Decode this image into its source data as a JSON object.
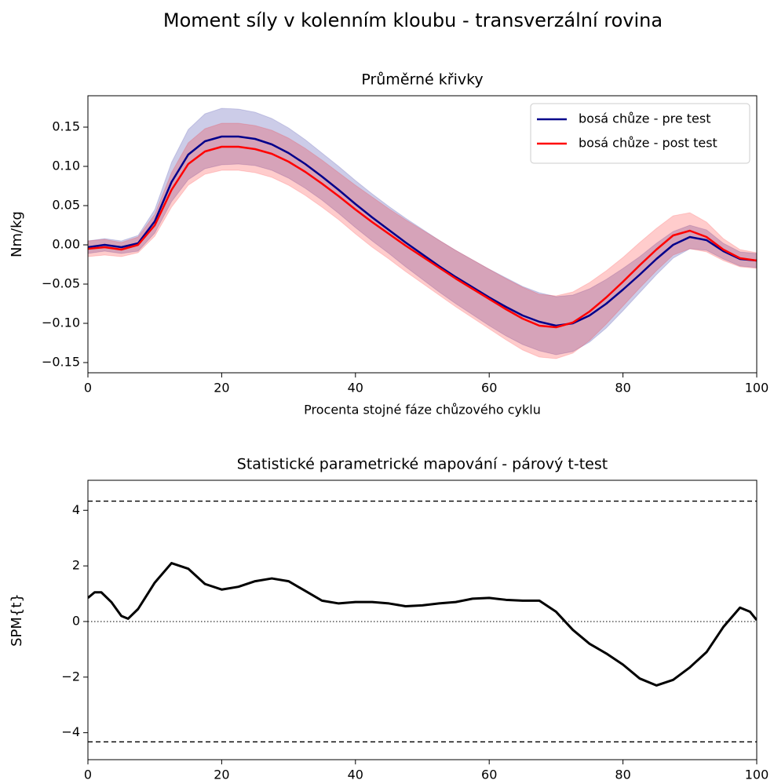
{
  "title": "Moment síly v kolenním kloubu - transverzální rovina",
  "chart_data": [
    {
      "type": "line",
      "title": "Průměrné křivky",
      "xlabel": "Procenta stojné fáze chůzového cyklu",
      "ylabel": "Nm/kg",
      "x": [
        0,
        2.5,
        5,
        7.5,
        10,
        12.5,
        15,
        17.5,
        20,
        22.5,
        25,
        27.5,
        30,
        32.5,
        35,
        37.5,
        40,
        42.5,
        45,
        47.5,
        50,
        52.5,
        55,
        57.5,
        60,
        62.5,
        65,
        67.5,
        70,
        72.5,
        75,
        77.5,
        80,
        82.5,
        85,
        87.5,
        90,
        92.5,
        95,
        97.5,
        100
      ],
      "series": [
        {
          "name": "bosá chůze - pre test",
          "color": "#00008b",
          "values": [
            -0.003,
            0.0,
            -0.003,
            0.002,
            0.03,
            0.08,
            0.115,
            0.132,
            0.138,
            0.138,
            0.135,
            0.128,
            0.117,
            0.103,
            0.087,
            0.07,
            0.052,
            0.035,
            0.019,
            0.003,
            -0.012,
            -0.027,
            -0.041,
            -0.054,
            -0.067,
            -0.079,
            -0.09,
            -0.098,
            -0.103,
            -0.1,
            -0.09,
            -0.075,
            -0.057,
            -0.038,
            -0.018,
            0.0,
            0.01,
            0.006,
            -0.008,
            -0.018,
            -0.02
          ],
          "errors": [
            0.008,
            0.008,
            0.008,
            0.01,
            0.015,
            0.025,
            0.032,
            0.035,
            0.036,
            0.035,
            0.034,
            0.033,
            0.032,
            0.031,
            0.03,
            0.03,
            0.03,
            0.03,
            0.03,
            0.031,
            0.032,
            0.033,
            0.034,
            0.035,
            0.036,
            0.037,
            0.037,
            0.037,
            0.037,
            0.036,
            0.034,
            0.031,
            0.027,
            0.023,
            0.02,
            0.017,
            0.015,
            0.013,
            0.01,
            0.009,
            0.009
          ]
        },
        {
          "name": "bosá chůze - post test",
          "color": "#ff0000",
          "values": [
            -0.005,
            -0.003,
            -0.006,
            0.0,
            0.025,
            0.07,
            0.103,
            0.119,
            0.125,
            0.125,
            0.122,
            0.116,
            0.106,
            0.093,
            0.078,
            0.062,
            0.045,
            0.029,
            0.014,
            -0.001,
            -0.015,
            -0.029,
            -0.043,
            -0.056,
            -0.069,
            -0.082,
            -0.094,
            -0.103,
            -0.105,
            -0.099,
            -0.085,
            -0.067,
            -0.047,
            -0.026,
            -0.006,
            0.012,
            0.018,
            0.01,
            -0.006,
            -0.017,
            -0.02
          ],
          "errors": [
            0.01,
            0.01,
            0.009,
            0.01,
            0.014,
            0.022,
            0.027,
            0.029,
            0.03,
            0.03,
            0.03,
            0.03,
            0.03,
            0.03,
            0.03,
            0.03,
            0.031,
            0.032,
            0.032,
            0.033,
            0.034,
            0.035,
            0.036,
            0.037,
            0.038,
            0.039,
            0.04,
            0.04,
            0.04,
            0.039,
            0.037,
            0.034,
            0.031,
            0.029,
            0.027,
            0.025,
            0.023,
            0.019,
            0.014,
            0.011,
            0.01
          ]
        }
      ],
      "xlim": [
        0,
        100
      ],
      "xticks": [
        0,
        20,
        40,
        60,
        80,
        100
      ],
      "ylim": [
        -0.163,
        0.19
      ],
      "yticks": [
        {
          "value": -0.15,
          "label": "−0.15"
        },
        {
          "value": -0.1,
          "label": "−0.10"
        },
        {
          "value": -0.05,
          "label": "−0.05"
        },
        {
          "value": 0,
          "label": "0.00"
        },
        0.05,
        {
          "value": 0.1,
          "label": "0.10"
        },
        0.15
      ],
      "legend": "upper right"
    },
    {
      "type": "line",
      "title": "Statistické parametrické mapování - párový t-test",
      "ylabel": "SPM{t}",
      "x": [
        0,
        1,
        2,
        3.5,
        5,
        6,
        7.5,
        10,
        12.5,
        15,
        17.5,
        20,
        22.5,
        25,
        27.5,
        30,
        32.5,
        35,
        37.5,
        40,
        42.5,
        45,
        47.5,
        50,
        52.5,
        55,
        57.5,
        60,
        62.5,
        65,
        67.5,
        70,
        72.5,
        75,
        77.5,
        80,
        82.5,
        85,
        87.5,
        90,
        92.5,
        95,
        97.5,
        99,
        100
      ],
      "series": [
        {
          "color": "#000000",
          "values": [
            0.85,
            1.05,
            1.05,
            0.7,
            0.2,
            0.1,
            0.45,
            1.4,
            2.1,
            1.9,
            1.35,
            1.15,
            1.25,
            1.45,
            1.55,
            1.45,
            1.1,
            0.75,
            0.65,
            0.7,
            0.7,
            0.65,
            0.55,
            0.58,
            0.65,
            0.7,
            0.82,
            0.85,
            0.78,
            0.75,
            0.75,
            0.35,
            -0.3,
            -0.8,
            -1.15,
            -1.55,
            -2.05,
            -2.3,
            -2.1,
            -1.65,
            -1.1,
            -0.2,
            0.5,
            0.35,
            0.05
          ]
        }
      ],
      "hlines": [
        {
          "value": 4.33,
          "style": "dashed"
        },
        {
          "value": -4.33,
          "style": "dashed"
        },
        {
          "value": 0,
          "style": "dotted"
        }
      ],
      "xlim": [
        0,
        100
      ],
      "xticks": [
        0,
        20,
        40,
        60,
        80,
        100
      ],
      "ylim": [
        -4.97,
        5.08
      ],
      "yticks": [
        {
          "value": -4,
          "label": "−4"
        },
        {
          "value": -2,
          "label": "−2"
        },
        0,
        2,
        4
      ]
    }
  ]
}
